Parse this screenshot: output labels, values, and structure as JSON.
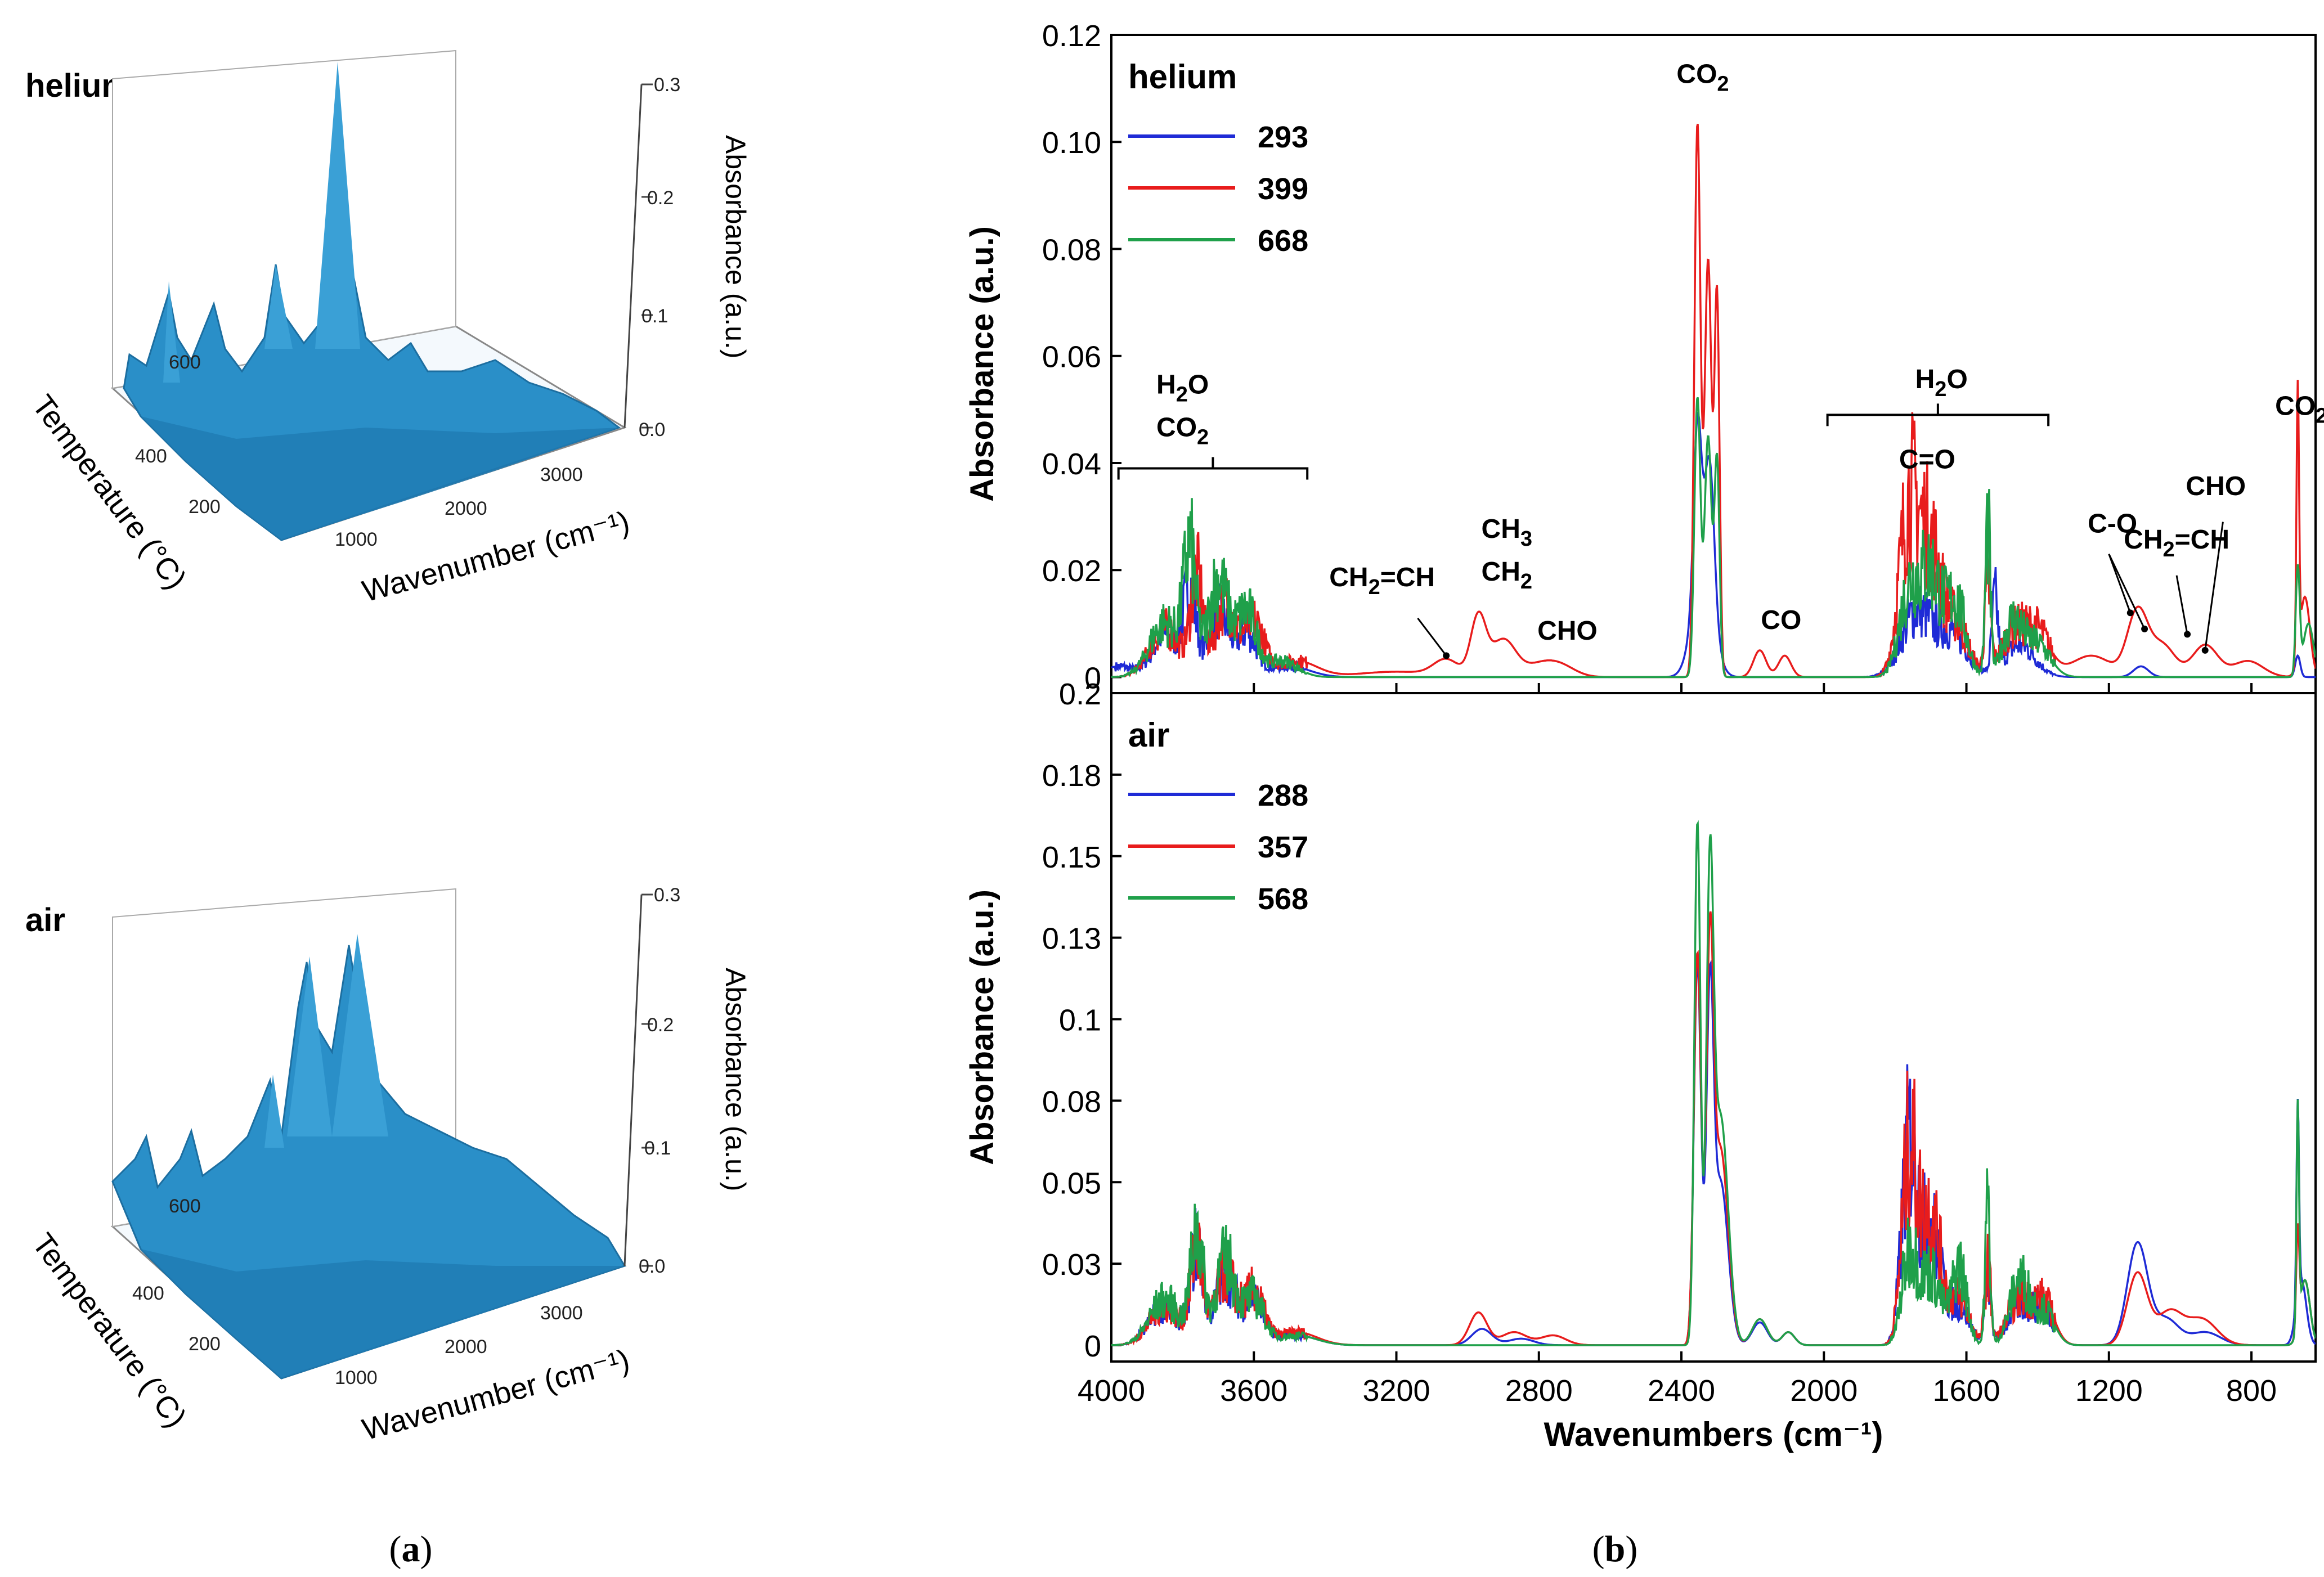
{
  "figure": {
    "panel_a_caption": [
      "(",
      "a",
      ")"
    ],
    "panel_b_caption": [
      "(",
      "b",
      ")"
    ]
  },
  "panel_a": {
    "helium": {
      "label": "helium",
      "z_axis_label": "Absorbance (a.u.)",
      "z_ticks": [
        "0.0",
        "0.1",
        "0.2",
        "0.3"
      ],
      "temp_axis_label": "Temperature (°C)",
      "temp_ticks": [
        "200",
        "400",
        "600"
      ],
      "wn_axis_label": "Wavenumber (cm⁻¹)",
      "wn_ticks": [
        "1000",
        "2000",
        "3000"
      ]
    },
    "air": {
      "label": "air",
      "z_axis_label": "Absorbance (a.u.)",
      "z_ticks": [
        "0.0",
        "0.1",
        "0.2",
        "0.3"
      ],
      "temp_axis_label": "Temperature (°C)",
      "temp_ticks": [
        "200",
        "400",
        "600"
      ],
      "wn_axis_label": "Wavenumber (cm⁻¹)",
      "wn_ticks": [
        "1000",
        "2000",
        "3000"
      ]
    },
    "surface_color": "#2a8fc8"
  },
  "chart_data": [
    {
      "type": "line",
      "title": "helium",
      "xlabel": "",
      "ylabel": "Absorbance (a.u.)",
      "xlim": [
        4000,
        620
      ],
      "ylim": [
        -0.003,
        0.12
      ],
      "y_ticks": [
        0,
        0.02,
        0.04,
        0.06,
        0.08,
        0.1,
        0.12
      ],
      "y_tick_labels": [
        "0",
        "0.02",
        "0.04",
        "0.06",
        "0.08",
        "0.10",
        "0.12"
      ],
      "x_ticks": [
        4000,
        3600,
        3200,
        2800,
        2400,
        2000,
        1600,
        1200,
        800
      ],
      "series": [
        {
          "name": "293",
          "color": "#1f2bd6",
          "peaks": [
            [
              3980,
              0.002,
              60
            ],
            [
              3850,
              0.008,
              50
            ],
            [
              3780,
              0.016,
              25
            ],
            [
              3700,
              0.012,
              40
            ],
            [
              3620,
              0.008,
              40
            ],
            [
              3500,
              0.002,
              80
            ],
            [
              2355,
              0.031,
              15
            ],
            [
              2320,
              0.025,
              18
            ],
            [
              2340,
              0.02,
              40
            ],
            [
              1740,
              0.012,
              60
            ],
            [
              1640,
              0.008,
              60
            ],
            [
              1520,
              0.013,
              12
            ],
            [
              1450,
              0.006,
              60
            ],
            [
              1110,
              0.002,
              30
            ],
            [
              670,
              0.004,
              10
            ]
          ]
        },
        {
          "name": "399",
          "color": "#e81c1c",
          "peaks": [
            [
              3850,
              0.009,
              60
            ],
            [
              3760,
              0.018,
              25
            ],
            [
              3680,
              0.014,
              40
            ],
            [
              3600,
              0.01,
              40
            ],
            [
              3480,
              0.003,
              80
            ],
            [
              3200,
              0.001,
              150
            ],
            [
              3060,
              0.003,
              50
            ],
            [
              2970,
              0.011,
              30
            ],
            [
              2900,
              0.007,
              50
            ],
            [
              2800,
              0.002,
              60
            ],
            [
              2740,
              0.002,
              60
            ],
            [
              2355,
              0.103,
              12
            ],
            [
              2325,
              0.078,
              14
            ],
            [
              2300,
              0.07,
              10
            ],
            [
              2180,
              0.005,
              25
            ],
            [
              2110,
              0.004,
              25
            ],
            [
              1760,
              0.032,
              40
            ],
            [
              1700,
              0.022,
              40
            ],
            [
              1630,
              0.01,
              50
            ],
            [
              1540,
              0.016,
              12
            ],
            [
              1470,
              0.008,
              50
            ],
            [
              1400,
              0.008,
              50
            ],
            [
              1250,
              0.004,
              80
            ],
            [
              1120,
              0.012,
              40
            ],
            [
              1050,
              0.006,
              50
            ],
            [
              930,
              0.006,
              50
            ],
            [
              810,
              0.003,
              60
            ],
            [
              670,
              0.05,
              5
            ],
            [
              650,
              0.015,
              20
            ]
          ]
        },
        {
          "name": "668",
          "color": "#1fa04a",
          "peaks": [
            [
              3850,
              0.01,
              60
            ],
            [
              3780,
              0.022,
              25
            ],
            [
              3700,
              0.018,
              40
            ],
            [
              3620,
              0.012,
              40
            ],
            [
              3520,
              0.003,
              60
            ],
            [
              2355,
              0.052,
              12
            ],
            [
              2325,
              0.045,
              14
            ],
            [
              2300,
              0.04,
              10
            ],
            [
              1760,
              0.016,
              40
            ],
            [
              1700,
              0.018,
              40
            ],
            [
              1630,
              0.014,
              40
            ],
            [
              1540,
              0.028,
              10
            ],
            [
              1470,
              0.01,
              40
            ],
            [
              1400,
              0.006,
              50
            ],
            [
              670,
              0.02,
              8
            ],
            [
              640,
              0.01,
              20
            ]
          ]
        }
      ],
      "annotations": [
        {
          "text": "CO",
          "sub": "2",
          "at": [
            2340,
            0.111
          ]
        },
        {
          "text": "H",
          "sub": "2",
          "after": "O",
          "at": [
            3800,
            0.053
          ]
        },
        {
          "text": "CO",
          "sub": "2",
          "at": [
            3800,
            0.045
          ]
        },
        {
          "text": "CH",
          "sub": "2",
          "before": "",
          "after": "=CH",
          "at": [
            3240,
            0.017
          ]
        },
        {
          "text": "CH",
          "sub": "3",
          "at": [
            2890,
            0.026
          ]
        },
        {
          "text": "CH",
          "sub": "2",
          "at": [
            2890,
            0.018
          ]
        },
        {
          "text": "CHO",
          "at": [
            2720,
            0.007
          ]
        },
        {
          "text": "CO",
          "at": [
            2120,
            0.009
          ]
        },
        {
          "text": "H",
          "sub": "2",
          "after": "O",
          "at": [
            1670,
            0.054
          ]
        },
        {
          "text": "C=O",
          "at": [
            1710,
            0.039
          ]
        },
        {
          "text": "C-O",
          "at": [
            1190,
            0.027
          ]
        },
        {
          "text": "CH",
          "sub": "2",
          "after": "=CH",
          "at": [
            1010,
            0.024
          ]
        },
        {
          "text": "CHO",
          "at": [
            900,
            0.034
          ]
        },
        {
          "text": "CO",
          "sub": "2",
          "at": [
            660,
            0.049
          ]
        }
      ]
    },
    {
      "type": "line",
      "title": "air",
      "xlabel": "Wavenumbers (cm⁻¹)",
      "ylabel": "Absorbance (a.u.)",
      "xlim": [
        4000,
        620
      ],
      "ylim": [
        -0.005,
        0.2
      ],
      "y_ticks": [
        0,
        0.025,
        0.05,
        0.075,
        0.1,
        0.125,
        0.15,
        0.175,
        0.2
      ],
      "y_tick_labels": [
        "0",
        "0.03",
        "0.05",
        "0.08",
        "0.1",
        "0.13",
        "0.15",
        "0.18",
        "0.2"
      ],
      "x_ticks": [
        4000,
        3600,
        3200,
        2800,
        2400,
        2000,
        1600,
        1200,
        800
      ],
      "x_tick_labels": [
        "4000",
        "3600",
        "3200",
        "2800",
        "2400",
        "2000",
        "1600",
        "1200",
        "800"
      ],
      "series": [
        {
          "name": "288",
          "color": "#1f2bd6",
          "peaks": [
            [
              3850,
              0.012,
              60
            ],
            [
              3760,
              0.03,
              25
            ],
            [
              3680,
              0.022,
              40
            ],
            [
              3600,
              0.014,
              40
            ],
            [
              3480,
              0.003,
              80
            ],
            [
              2960,
              0.005,
              40
            ],
            [
              2850,
              0.002,
              50
            ],
            [
              2355,
              0.117,
              14
            ],
            [
              2320,
              0.098,
              14
            ],
            [
              2290,
              0.05,
              30
            ],
            [
              2180,
              0.007,
              30
            ],
            [
              2100,
              0.004,
              25
            ],
            [
              1760,
              0.06,
              30
            ],
            [
              1700,
              0.035,
              40
            ],
            [
              1620,
              0.012,
              40
            ],
            [
              1540,
              0.02,
              12
            ],
            [
              1450,
              0.012,
              50
            ],
            [
              1380,
              0.01,
              40
            ],
            [
              1120,
              0.031,
              40
            ],
            [
              1040,
              0.008,
              50
            ],
            [
              930,
              0.004,
              60
            ],
            [
              670,
              0.06,
              5
            ],
            [
              660,
              0.02,
              20
            ]
          ]
        },
        {
          "name": "357",
          "color": "#e81c1c",
          "peaks": [
            [
              3850,
              0.012,
              60
            ],
            [
              3760,
              0.028,
              25
            ],
            [
              3680,
              0.022,
              40
            ],
            [
              3600,
              0.016,
              40
            ],
            [
              3480,
              0.004,
              80
            ],
            [
              2970,
              0.01,
              35
            ],
            [
              2870,
              0.004,
              50
            ],
            [
              2760,
              0.003,
              50
            ],
            [
              2355,
              0.12,
              14
            ],
            [
              2320,
              0.11,
              14
            ],
            [
              2290,
              0.06,
              30
            ],
            [
              2180,
              0.008,
              30
            ],
            [
              2100,
              0.004,
              25
            ],
            [
              1760,
              0.058,
              30
            ],
            [
              1700,
              0.04,
              40
            ],
            [
              1620,
              0.014,
              40
            ],
            [
              1540,
              0.024,
              12
            ],
            [
              1450,
              0.014,
              50
            ],
            [
              1380,
              0.012,
              40
            ],
            [
              1120,
              0.022,
              40
            ],
            [
              1030,
              0.01,
              50
            ],
            [
              940,
              0.008,
              60
            ],
            [
              670,
              0.03,
              6
            ],
            [
              650,
              0.02,
              20
            ]
          ]
        },
        {
          "name": "568",
          "color": "#1fa04a",
          "peaks": [
            [
              3850,
              0.014,
              60
            ],
            [
              3760,
              0.034,
              25
            ],
            [
              3680,
              0.026,
              40
            ],
            [
              3600,
              0.014,
              40
            ],
            [
              3480,
              0.003,
              80
            ],
            [
              2355,
              0.16,
              12
            ],
            [
              2320,
              0.13,
              14
            ],
            [
              2290,
              0.07,
              30
            ],
            [
              2180,
              0.008,
              30
            ],
            [
              2100,
              0.004,
              25
            ],
            [
              1760,
              0.028,
              30
            ],
            [
              1700,
              0.022,
              40
            ],
            [
              1620,
              0.024,
              30
            ],
            [
              1540,
              0.042,
              10
            ],
            [
              1450,
              0.02,
              40
            ],
            [
              1380,
              0.01,
              40
            ],
            [
              670,
              0.068,
              5
            ],
            [
              650,
              0.02,
              20
            ]
          ]
        }
      ],
      "annotations": []
    }
  ]
}
